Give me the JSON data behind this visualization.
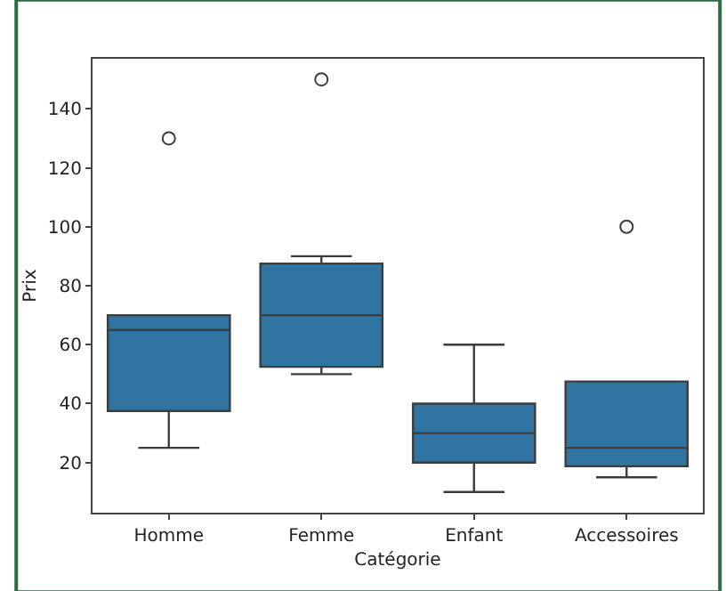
{
  "chart_data": {
    "type": "box",
    "xlabel": "Catégorie",
    "ylabel": "Prix",
    "categories": [
      "Homme",
      "Femme",
      "Enfant",
      "Accessoires"
    ],
    "boxes": [
      {
        "low": 25,
        "q1": 37.5,
        "median": 65,
        "q3": 70,
        "high": 70,
        "outliers": [
          130
        ]
      },
      {
        "low": 50,
        "q1": 52.5,
        "median": 70,
        "q3": 87.5,
        "high": 90,
        "outliers": [
          150
        ]
      },
      {
        "low": 10,
        "q1": 20,
        "median": 30,
        "q3": 40,
        "high": 60
      },
      {
        "low": 15,
        "q1": 18.75,
        "median": 25,
        "q3": 47.5,
        "high": 47.5,
        "outliers": [
          100
        ]
      }
    ],
    "color": "#3274a1",
    "ylim": [
      3,
      157
    ],
    "yticks": [
      20,
      40,
      60,
      80,
      100,
      120,
      140
    ],
    "marker": "circle"
  }
}
